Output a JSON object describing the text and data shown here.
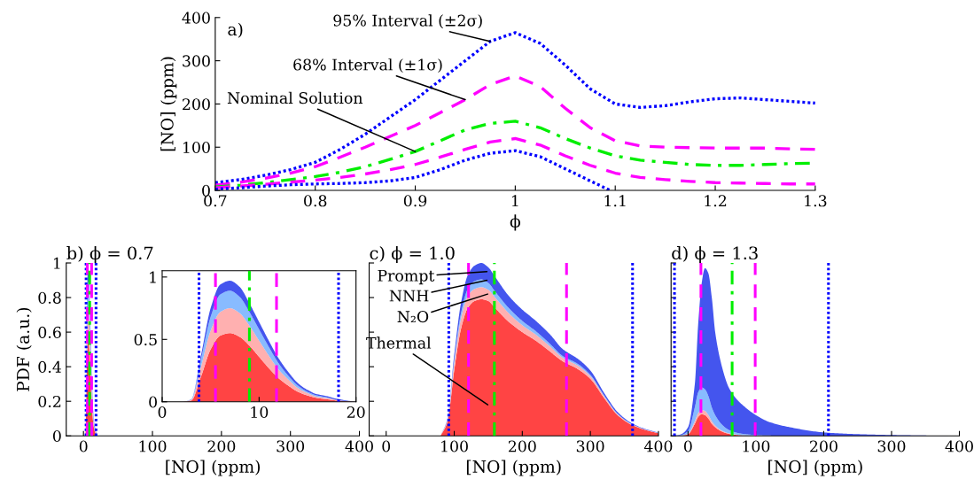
{
  "chart_data": [
    {
      "type": "line",
      "title": "a)",
      "xlabel": "ϕ",
      "ylabel": "[NO] (ppm)",
      "x": [
        0.7,
        0.725,
        0.75,
        0.775,
        0.8,
        0.825,
        0.85,
        0.875,
        0.9,
        0.925,
        0.95,
        0.975,
        1.0,
        1.025,
        1.05,
        1.075,
        1.1,
        1.125,
        1.15,
        1.175,
        1.2,
        1.225,
        1.25,
        1.275,
        1.3
      ],
      "xlim": [
        0.7,
        1.3
      ],
      "ylim": [
        0,
        400
      ],
      "xticks": [
        0.7,
        0.8,
        0.9,
        1,
        1.1,
        1.2,
        1.3
      ],
      "yticks": [
        0,
        100,
        200,
        300,
        400
      ],
      "series": [
        {
          "color": "#0000ff",
          "line_style": "dotted",
          "values": [
            18,
            25,
            35,
            48,
            65,
            95,
            130,
            170,
            210,
            255,
            300,
            345,
            365,
            340,
            290,
            235,
            200,
            192,
            196,
            205,
            212,
            214,
            210,
            206,
            202
          ]
        },
        {
          "color": "#ff00ff",
          "line_style": "dashed",
          "values": [
            12,
            19,
            28,
            40,
            55,
            77,
            100,
            125,
            150,
            180,
            210,
            245,
            265,
            240,
            190,
            145,
            115,
            103,
            100,
            99,
            98,
            98,
            98,
            96,
            95
          ]
        },
        {
          "color": "#00ee00",
          "line_style": "dashdot",
          "values": [
            8,
            12,
            18,
            25,
            32,
            42,
            55,
            72,
            90,
            115,
            140,
            155,
            160,
            145,
            120,
            98,
            80,
            70,
            65,
            60,
            58,
            58,
            60,
            62,
            63
          ]
        },
        {
          "color": "#ff00ff",
          "line_style": "dashed",
          "values": [
            6,
            10,
            14,
            19,
            24,
            30,
            38,
            48,
            60,
            77,
            95,
            112,
            120,
            105,
            80,
            58,
            40,
            30,
            25,
            21,
            18,
            17,
            16,
            15,
            15
          ]
        },
        {
          "color": "#0000ff",
          "line_style": "dotted",
          "x": [
            0.7,
            0.725,
            0.75,
            0.775,
            0.8,
            0.825,
            0.85,
            0.875,
            0.9,
            0.925,
            0.95,
            0.975,
            1.0,
            1.025,
            1.05,
            1.075,
            1.095
          ],
          "values": [
            3,
            6,
            10,
            13,
            15,
            16,
            18,
            22,
            30,
            48,
            70,
            86,
            92,
            78,
            50,
            22,
            0
          ]
        }
      ],
      "annotations": [
        {
          "text": "95% Interval (±2σ)",
          "x": 0.975,
          "y": 345
        },
        {
          "text": "68% Interval (±1σ)",
          "x": 0.95,
          "y": 210
        },
        {
          "text": "Nominal Solution",
          "x": 0.9,
          "y": 90
        }
      ]
    },
    {
      "type": "area",
      "stacked": true,
      "title": "b) ϕ = 0.7",
      "xlabel": "[NO] (ppm)",
      "ylabel": "PDF (a.u.)",
      "x": [
        0,
        1,
        2,
        3,
        4,
        5,
        6,
        7,
        8,
        9,
        10,
        11,
        12,
        13,
        14,
        15,
        16,
        17,
        18,
        19,
        20
      ],
      "xlim": [
        -25,
        400
      ],
      "ylim": [
        0,
        1
      ],
      "xticks": [
        0,
        100,
        200,
        300,
        400
      ],
      "yticks": [
        0,
        0.2,
        0.4,
        0.6,
        0.8,
        1
      ],
      "series": [
        {
          "color": "#ff4444",
          "values": [
            0,
            0,
            0,
            0.01,
            0.2,
            0.42,
            0.53,
            0.55,
            0.52,
            0.45,
            0.36,
            0.27,
            0.19,
            0.13,
            0.08,
            0.05,
            0.03,
            0.02,
            0.01,
            0.005,
            0
          ]
        },
        {
          "color": "#ffb0b0",
          "values": [
            0,
            0,
            0,
            0.005,
            0.08,
            0.15,
            0.19,
            0.2,
            0.19,
            0.16,
            0.13,
            0.1,
            0.07,
            0.05,
            0.03,
            0.02,
            0.01,
            0.01,
            0.005,
            0,
            0
          ]
        },
        {
          "color": "#88bbff",
          "values": [
            0,
            0,
            0,
            0.003,
            0.06,
            0.11,
            0.14,
            0.14,
            0.13,
            0.11,
            0.09,
            0.07,
            0.05,
            0.03,
            0.02,
            0.01,
            0.01,
            0.005,
            0,
            0,
            0
          ]
        },
        {
          "color": "#4455ee",
          "values": [
            0,
            0,
            0,
            0.002,
            0.03,
            0.07,
            0.08,
            0.08,
            0.08,
            0.07,
            0.06,
            0.05,
            0.04,
            0.03,
            0.02,
            0.015,
            0.01,
            0.01,
            0.01,
            0.005,
            0
          ]
        }
      ],
      "ref_lines": [
        {
          "axis": "x",
          "value": 3.8,
          "color": "#0000ff",
          "line_style": "dotted"
        },
        {
          "axis": "x",
          "value": 5.5,
          "color": "#ff00ff",
          "line_style": "dashed"
        },
        {
          "axis": "x",
          "value": 9,
          "color": "#00ee00",
          "line_style": "dashdot"
        },
        {
          "axis": "x",
          "value": 11.8,
          "color": "#ff00ff",
          "line_style": "dashed"
        },
        {
          "axis": "x",
          "value": 18.2,
          "color": "#0000ff",
          "line_style": "dotted"
        }
      ]
    },
    {
      "type": "area",
      "stacked": true,
      "x": [
        0,
        1,
        2,
        3,
        4,
        5,
        6,
        7,
        8,
        9,
        10,
        11,
        12,
        13,
        14,
        15,
        16,
        17,
        18,
        19,
        20
      ],
      "xlim": [
        0,
        20
      ],
      "ylim": [
        0,
        1.05
      ],
      "xticks": [
        0,
        10,
        20
      ],
      "yticks": [
        0,
        0.5,
        1
      ],
      "series": [
        {
          "color": "#ff4444",
          "values": [
            0,
            0,
            0,
            0.01,
            0.2,
            0.42,
            0.53,
            0.55,
            0.52,
            0.45,
            0.36,
            0.27,
            0.19,
            0.13,
            0.08,
            0.05,
            0.03,
            0.02,
            0.01,
            0.005,
            0
          ]
        },
        {
          "color": "#ffb0b0",
          "values": [
            0,
            0,
            0,
            0.005,
            0.08,
            0.15,
            0.19,
            0.2,
            0.19,
            0.16,
            0.13,
            0.1,
            0.07,
            0.05,
            0.03,
            0.02,
            0.01,
            0.01,
            0.005,
            0,
            0
          ]
        },
        {
          "color": "#88bbff",
          "values": [
            0,
            0,
            0,
            0.003,
            0.06,
            0.11,
            0.14,
            0.14,
            0.13,
            0.11,
            0.09,
            0.07,
            0.05,
            0.03,
            0.02,
            0.01,
            0.01,
            0.005,
            0,
            0,
            0
          ]
        },
        {
          "color": "#4455ee",
          "values": [
            0,
            0,
            0,
            0.002,
            0.03,
            0.07,
            0.08,
            0.08,
            0.08,
            0.07,
            0.06,
            0.05,
            0.04,
            0.03,
            0.02,
            0.015,
            0.01,
            0.01,
            0.01,
            0.005,
            0
          ]
        }
      ],
      "ref_lines": [
        {
          "axis": "x",
          "value": 3.8,
          "color": "#0000ff",
          "line_style": "dotted"
        },
        {
          "axis": "x",
          "value": 5.5,
          "color": "#ff00ff",
          "line_style": "dashed"
        },
        {
          "axis": "x",
          "value": 9,
          "color": "#00ee00",
          "line_style": "dashdot"
        },
        {
          "axis": "x",
          "value": 11.8,
          "color": "#ff00ff",
          "line_style": "dashed"
        },
        {
          "axis": "x",
          "value": 18.2,
          "color": "#0000ff",
          "line_style": "dotted"
        }
      ]
    },
    {
      "type": "area",
      "stacked": true,
      "title": "c) ϕ = 1.0",
      "xlabel": "[NO] (ppm)",
      "tick_labels": "x",
      "x": [
        80,
        90,
        100,
        110,
        120,
        130,
        140,
        150,
        160,
        180,
        200,
        220,
        240,
        260,
        280,
        300,
        320,
        340,
        360,
        380,
        400
      ],
      "xlim": [
        -25,
        400
      ],
      "ylim": [
        0,
        1
      ],
      "xticks": [
        0,
        100,
        200,
        300,
        400
      ],
      "yticks": [
        0,
        0.2,
        0.4,
        0.6,
        0.8,
        1
      ],
      "series": [
        {
          "color": "#ff4444",
          "values": [
            0,
            0.08,
            0.38,
            0.62,
            0.74,
            0.78,
            0.79,
            0.78,
            0.74,
            0.66,
            0.6,
            0.55,
            0.49,
            0.43,
            0.39,
            0.33,
            0.22,
            0.12,
            0.065,
            0.035,
            0.015
          ]
        },
        {
          "color": "#ffb0b0",
          "values": [
            0,
            0.01,
            0.04,
            0.06,
            0.07,
            0.07,
            0.07,
            0.065,
            0.06,
            0.05,
            0.04,
            0.035,
            0.03,
            0.02,
            0.02,
            0.015,
            0.01,
            0.005,
            0.003,
            0.002,
            0.001
          ]
        },
        {
          "color": "#88bbff",
          "values": [
            0,
            0.005,
            0.02,
            0.03,
            0.04,
            0.045,
            0.045,
            0.04,
            0.035,
            0.03,
            0.025,
            0.02,
            0.015,
            0.01,
            0.01,
            0.008,
            0.005,
            0.003,
            0.002,
            0.001,
            0.001
          ]
        },
        {
          "color": "#4455ee",
          "values": [
            0,
            0.005,
            0.03,
            0.06,
            0.08,
            0.09,
            0.095,
            0.09,
            0.085,
            0.07,
            0.065,
            0.06,
            0.055,
            0.04,
            0.03,
            0.025,
            0.015,
            0.01,
            0.005,
            0.003,
            0.002
          ]
        }
      ],
      "ref_lines": [
        {
          "axis": "x",
          "value": 92,
          "color": "#0000ff",
          "line_style": "dotted"
        },
        {
          "axis": "x",
          "value": 121,
          "color": "#ff00ff",
          "line_style": "dashed"
        },
        {
          "axis": "x",
          "value": 159,
          "color": "#00ee00",
          "line_style": "dashdot"
        },
        {
          "axis": "x",
          "value": 265,
          "color": "#ff00ff",
          "line_style": "dashed"
        },
        {
          "axis": "x",
          "value": 362,
          "color": "#0000ff",
          "line_style": "dotted"
        }
      ],
      "annotations": [
        {
          "text": "Prompt",
          "x": 148,
          "y": 0.95
        },
        {
          "text": "NNH",
          "x": 148,
          "y": 0.9
        },
        {
          "text": "N₂O",
          "x": 149,
          "y": 0.82
        },
        "Thermal"
      ]
    },
    {
      "type": "area",
      "stacked": true,
      "title": "d) ϕ = 1.3",
      "xlabel": "[NO] (ppm)",
      "tick_labels": "x",
      "x": [
        -20,
        -10,
        0,
        10,
        15,
        20,
        25,
        30,
        35,
        40,
        50,
        60,
        70,
        80,
        100,
        120,
        150,
        200,
        250,
        300,
        350,
        400
      ],
      "xlim": [
        -25,
        400
      ],
      "ylim": [
        0,
        1
      ],
      "xticks": [
        0,
        100,
        200,
        300,
        400
      ],
      "yticks": [
        0,
        0.2,
        0.4,
        0.6,
        0.8,
        1
      ],
      "series": [
        {
          "color": "#ff4444",
          "values": [
            0,
            0.002,
            0.01,
            0.07,
            0.11,
            0.125,
            0.12,
            0.1,
            0.07,
            0.05,
            0.025,
            0.012,
            0.006,
            0.003,
            0.001,
            0,
            0,
            0,
            0,
            0,
            0,
            0
          ]
        },
        {
          "color": "#ffb0b0",
          "values": [
            0,
            0,
            0.002,
            0.015,
            0.022,
            0.025,
            0.024,
            0.02,
            0.015,
            0.01,
            0.005,
            0.003,
            0.002,
            0.001,
            0,
            0,
            0,
            0,
            0,
            0,
            0,
            0
          ]
        },
        {
          "color": "#88bbff",
          "values": [
            0,
            0.003,
            0.015,
            0.08,
            0.12,
            0.13,
            0.125,
            0.11,
            0.08,
            0.06,
            0.035,
            0.02,
            0.012,
            0.008,
            0.004,
            0.002,
            0.001,
            0,
            0,
            0,
            0,
            0
          ]
        },
        {
          "color": "#4455ee",
          "values": [
            0,
            0.005,
            0.023,
            0.135,
            0.398,
            0.6,
            0.701,
            0.71,
            0.635,
            0.48,
            0.335,
            0.245,
            0.2,
            0.168,
            0.115,
            0.078,
            0.049,
            0.02,
            0.01,
            0.005,
            0.002,
            0
          ]
        }
      ],
      "ref_lines": [
        {
          "axis": "x",
          "value": -20,
          "color": "#0000ff",
          "line_style": "dotted"
        },
        {
          "axis": "x",
          "value": 19,
          "color": "#ff00ff",
          "line_style": "dashed"
        },
        {
          "axis": "x",
          "value": 65,
          "color": "#00ee00",
          "line_style": "dashdot"
        },
        {
          "axis": "x",
          "value": 99,
          "color": "#ff00ff",
          "line_style": "dashed"
        },
        {
          "axis": "x",
          "value": 207,
          "color": "#0000ff",
          "line_style": "dotted"
        }
      ]
    }
  ]
}
